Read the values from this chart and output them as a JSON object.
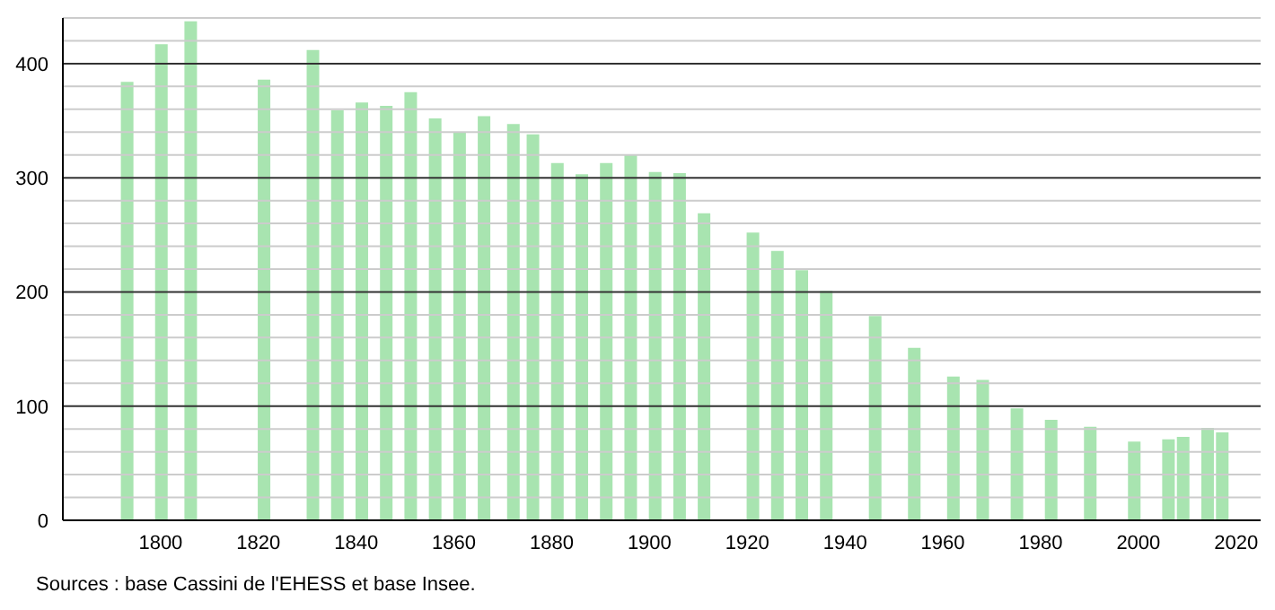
{
  "chart_data": {
    "type": "bar",
    "x": [
      1793,
      1800,
      1806,
      1821,
      1831,
      1836,
      1841,
      1846,
      1851,
      1856,
      1861,
      1866,
      1872,
      1876,
      1881,
      1886,
      1891,
      1896,
      1901,
      1906,
      1911,
      1921,
      1926,
      1931,
      1936,
      1946,
      1954,
      1962,
      1968,
      1975,
      1982,
      1990,
      1999,
      2006,
      2009,
      2014,
      2017
    ],
    "values": [
      384,
      417,
      437,
      386,
      412,
      359,
      366,
      363,
      375,
      352,
      340,
      354,
      347,
      338,
      313,
      303,
      313,
      320,
      305,
      304,
      269,
      252,
      236,
      219,
      201,
      179,
      151,
      126,
      123,
      98,
      88,
      82,
      69,
      71,
      73,
      81,
      77
    ],
    "color": "#a8e4b0",
    "xlim": [
      1780,
      2025
    ],
    "xticks": [
      1800,
      1820,
      1840,
      1860,
      1880,
      1900,
      1920,
      1940,
      1960,
      1980,
      2000,
      2020
    ],
    "ylim": [
      0,
      440
    ],
    "yticks": [
      0,
      {
        "value": 20,
        "label": null
      },
      {
        "value": 40,
        "label": null
      },
      {
        "value": 60,
        "label": null
      },
      {
        "value": 80,
        "label": null
      },
      100,
      {
        "value": 120,
        "label": null
      },
      {
        "value": 140,
        "label": null
      },
      {
        "value": 160,
        "label": null
      },
      {
        "value": 180,
        "label": null
      },
      200,
      {
        "value": 220,
        "label": null
      },
      {
        "value": 240,
        "label": null
      },
      {
        "value": 260,
        "label": null
      },
      {
        "value": 280,
        "label": null
      },
      300,
      {
        "value": 320,
        "label": null
      },
      {
        "value": 340,
        "label": null
      },
      {
        "value": 360,
        "label": null
      },
      {
        "value": 380,
        "label": null
      },
      400,
      {
        "value": 420,
        "label": null
      },
      {
        "value": 440,
        "label": null
      }
    ],
    "grid": "y",
    "annotations": [
      "Sources : base Cassini de l'EHESS et base Insee."
    ]
  }
}
